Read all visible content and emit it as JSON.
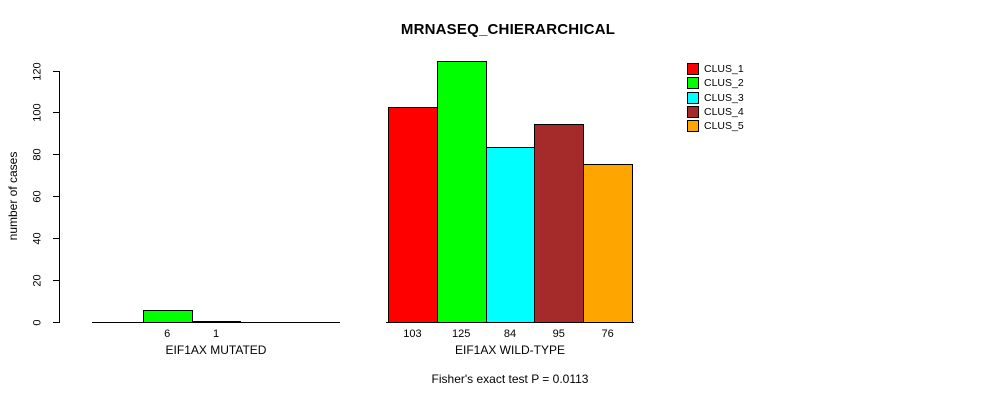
{
  "chart_data": {
    "type": "bar",
    "title": "MRNASEQ_CHIERARCHICAL",
    "ylabel": "number of cases",
    "ylim": [
      0,
      120
    ],
    "yticks": [
      0,
      20,
      40,
      60,
      80,
      100,
      120
    ],
    "grid": false,
    "legend_position": "top-right",
    "categories": [
      "EIF1AX MUTATED",
      "EIF1AX WILD-TYPE"
    ],
    "series": [
      {
        "name": "CLUS_1",
        "color": "#FF0000",
        "values": [
          0,
          103
        ]
      },
      {
        "name": "CLUS_2",
        "color": "#00FF00",
        "values": [
          6,
          125
        ]
      },
      {
        "name": "CLUS_3",
        "color": "#00FFFF",
        "values": [
          1,
          84
        ]
      },
      {
        "name": "CLUS_4",
        "color": "#A52A2A",
        "values": [
          0,
          95
        ]
      },
      {
        "name": "CLUS_5",
        "color": "#FFA500",
        "values": [
          0,
          76
        ]
      }
    ],
    "value_labels": {
      "shown": true,
      "hide_zero": true
    },
    "footnote": "Fisher's exact test P = 0.0113"
  }
}
